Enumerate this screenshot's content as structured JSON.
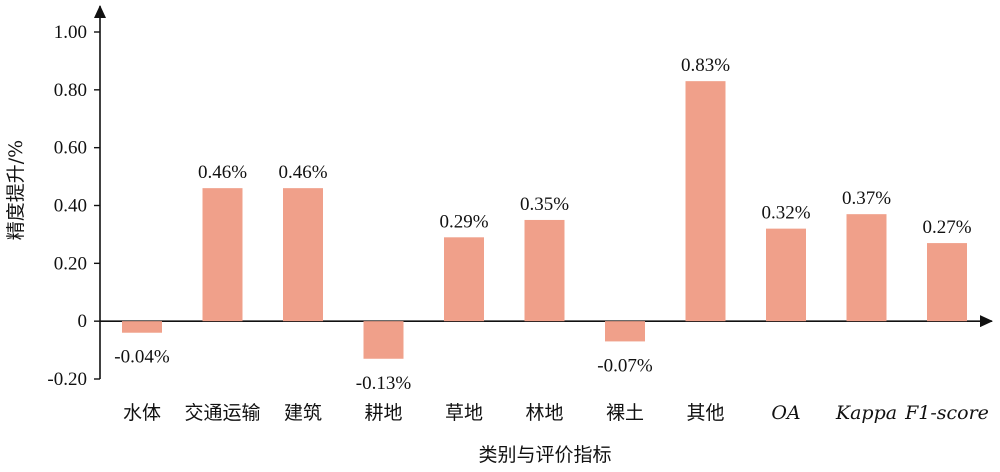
{
  "chart_data": {
    "type": "bar",
    "xlabel": "类别与评价指标",
    "ylabel": "精度提升/%",
    "ylim": [
      -0.2,
      1.0
    ],
    "yticks": [
      {
        "value": -0.2,
        "label": "-0.20"
      },
      {
        "value": 0.0,
        "label": "0"
      },
      {
        "value": 0.2,
        "label": "0.20"
      },
      {
        "value": 0.4,
        "label": "0.40"
      },
      {
        "value": 0.6,
        "label": "0.60"
      },
      {
        "value": 0.8,
        "label": "0.80"
      },
      {
        "value": 1.0,
        "label": "1.00"
      }
    ],
    "categories": [
      "水体",
      "交通运输",
      "建筑",
      "耕地",
      "草地",
      "林地",
      "裸土",
      "其他",
      "OA",
      "Kappa",
      "F1-score"
    ],
    "italic_categories": [
      "OA",
      "Kappa",
      "F1-score"
    ],
    "values": [
      -0.04,
      0.46,
      0.46,
      -0.13,
      0.29,
      0.35,
      -0.07,
      0.83,
      0.32,
      0.37,
      0.27
    ],
    "data_labels": [
      "-0.04%",
      "0.46%",
      "0.46%",
      "-0.13%",
      "0.29%",
      "0.35%",
      "-0.07%",
      "0.83%",
      "0.32%",
      "0.37%",
      "0.27%"
    ],
    "bar_color": "#f0a08a",
    "grid": false,
    "legend": "none"
  }
}
